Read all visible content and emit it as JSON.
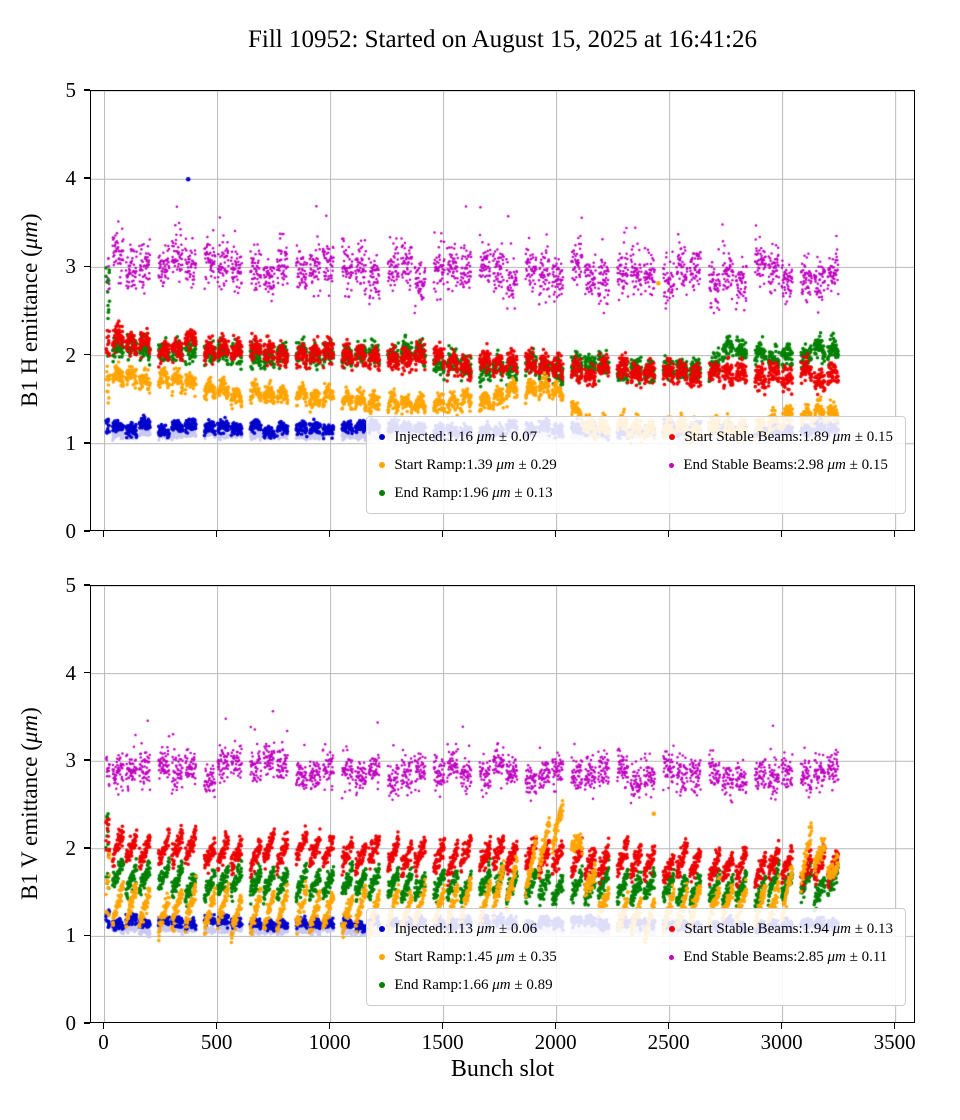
{
  "title": "Fill 10952: Started on August 15, 2025 at 16:41:26",
  "xlabel": "Bunch slot",
  "colors": {
    "axis": "#000000",
    "grid": "#b9b9b9",
    "legend_border": "#cccccc",
    "background": "#ffffff"
  },
  "chart_data": [
    {
      "id": "b1h",
      "type": "scatter",
      "ylabel": "B1 H emittance (μm)",
      "ylabel_parts": [
        "B1 H emittance (",
        "μm",
        ")"
      ],
      "xlim": [
        -60,
        3590
      ],
      "ylim": [
        0,
        5
      ],
      "xticks": [
        0,
        500,
        1000,
        1500,
        2000,
        2500,
        3000,
        3500
      ],
      "yticks": [
        0,
        1,
        2,
        3,
        4,
        5
      ],
      "show_x_labels": false,
      "grid": true,
      "legend": {
        "position": "lower right",
        "columns": [
          [
            0,
            1,
            2
          ],
          [
            3,
            4
          ]
        ]
      },
      "trains": {
        "start": 36,
        "end": 3255,
        "train_len": 48,
        "gap_in": 11,
        "gap_out": 37,
        "group": 3
      },
      "draw_order": [
        5,
        4,
        2,
        3,
        0,
        1
      ],
      "series": [
        {
          "name": "Injected",
          "color": "#0000cd",
          "r": 1.8,
          "mean": 1.16,
          "std": 0.07,
          "legend_parts": [
            "Injected:1.16 ",
            "μm",
            " ± 0.07"
          ],
          "train_mode": "arch",
          "train_amp": 0.03,
          "noise": 0.035,
          "anchors": [
            [
              0,
              1.18
            ],
            [
              800,
              1.16
            ],
            [
              1600,
              1.15
            ],
            [
              2400,
              1.16
            ],
            [
              3250,
              1.17
            ]
          ],
          "pilot": [
            1.12,
            1.3
          ],
          "outliers": [
            [
              370,
              4.0
            ]
          ]
        },
        {
          "name": "Start Ramp",
          "color": "#ffa500",
          "r": 1.8,
          "mean": 1.39,
          "std": 0.29,
          "legend_parts": [
            "Start Ramp:1.39 ",
            "μm",
            " ± 0.29"
          ],
          "train_mode": "arch",
          "train_amp": 0.1,
          "noise": 0.05,
          "anchors": [
            [
              0,
              1.72
            ],
            [
              300,
              1.63
            ],
            [
              600,
              1.52
            ],
            [
              900,
              1.47
            ],
            [
              1200,
              1.44
            ],
            [
              1500,
              1.4
            ],
            [
              1750,
              1.45
            ],
            [
              1950,
              1.62
            ],
            [
              2050,
              1.45
            ],
            [
              2150,
              1.16
            ],
            [
              2400,
              1.12
            ],
            [
              2700,
              1.13
            ],
            [
              2950,
              1.17
            ],
            [
              3080,
              1.27
            ],
            [
              3160,
              1.33
            ],
            [
              3250,
              1.24
            ]
          ],
          "pilot": [
            1.35,
            1.95
          ],
          "outliers": [
            [
              2450,
              2.82
            ]
          ]
        },
        {
          "name": "End Ramp",
          "color": "#008000",
          "r": 1.8,
          "mean": 1.96,
          "std": 0.13,
          "legend_parts": [
            "End Ramp:1.96 ",
            "μm",
            " ± 0.13"
          ],
          "train_mode": "arch",
          "train_amp": 0.05,
          "noise": 0.065,
          "anchors": [
            [
              0,
              2.06
            ],
            [
              600,
              2.0
            ],
            [
              1200,
              1.95
            ],
            [
              1800,
              1.87
            ],
            [
              2300,
              1.8
            ],
            [
              2650,
              1.8
            ],
            [
              2760,
              2.02
            ],
            [
              3000,
              1.97
            ],
            [
              3250,
              2.0
            ]
          ],
          "pilot": [
            1.85,
            3.0
          ]
        },
        {
          "name": "Start Stable Beams",
          "color": "#ee0000",
          "r": 1.8,
          "mean": 1.89,
          "std": 0.15,
          "legend_parts": [
            "Start Stable Beams:1.89 ",
            "μm",
            " ± 0.15"
          ],
          "train_mode": "arch",
          "train_amp": 0.07,
          "noise": 0.065,
          "anchors": [
            [
              0,
              2.1
            ],
            [
              600,
              2.04
            ],
            [
              1200,
              1.97
            ],
            [
              1800,
              1.86
            ],
            [
              2400,
              1.78
            ],
            [
              2800,
              1.76
            ],
            [
              3250,
              1.7
            ]
          ],
          "pilot": [
            2.0,
            2.35
          ]
        },
        {
          "name": "End Stable Beams",
          "color": "#bf00bf",
          "r": 1.25,
          "mean": 2.98,
          "std": 0.15,
          "legend_parts": [
            "End Stable Beams:2.98 ",
            "μm",
            " ± 0.15"
          ],
          "train_mode": "arch",
          "train_amp": 0.0,
          "noise": 0.13,
          "tail": 0.03,
          "anchors": [
            [
              0,
              3.02
            ],
            [
              600,
              3.0
            ],
            [
              1400,
              2.98
            ],
            [
              2000,
              2.95
            ],
            [
              2600,
              2.9
            ],
            [
              3250,
              2.92
            ]
          ],
          "pilot": [
            2.72,
            3.12
          ]
        },
        {
          "name": "shadow-band",
          "color": "#c9c9f0",
          "r": 1.6,
          "train_mode": "arch",
          "train_amp": 0.02,
          "noise": 0.02,
          "anchors": [
            [
              0,
              1.1
            ],
            [
              1600,
              1.08
            ],
            [
              3250,
              1.09
            ]
          ]
        }
      ]
    },
    {
      "id": "b1v",
      "type": "scatter",
      "ylabel": "B1 V emittance (μm)",
      "ylabel_parts": [
        "B1 V emittance (",
        "μm",
        ")"
      ],
      "xlim": [
        -60,
        3590
      ],
      "ylim": [
        0,
        5
      ],
      "xticks": [
        0,
        500,
        1000,
        1500,
        2000,
        2500,
        3000,
        3500
      ],
      "yticks": [
        0,
        1,
        2,
        3,
        4,
        5
      ],
      "show_x_labels": true,
      "grid": true,
      "legend": {
        "position": "lower right",
        "columns": [
          [
            0,
            1,
            2
          ],
          [
            3,
            4
          ]
        ]
      },
      "trains": {
        "start": 36,
        "end": 3255,
        "train_len": 48,
        "gap_in": 11,
        "gap_out": 37,
        "group": 3
      },
      "draw_order": [
        5,
        4,
        2,
        3,
        0,
        1
      ],
      "series": [
        {
          "name": "Injected",
          "color": "#0000cd",
          "r": 1.8,
          "mean": 1.13,
          "std": 0.06,
          "legend_parts": [
            "Injected:1.13 ",
            "μm",
            " ± 0.06"
          ],
          "train_mode": "arch",
          "train_amp": 0.03,
          "noise": 0.03,
          "anchors": [
            [
              0,
              1.16
            ],
            [
              800,
              1.14
            ],
            [
              1600,
              1.13
            ],
            [
              2400,
              1.13
            ],
            [
              3250,
              1.12
            ]
          ],
          "pilot": [
            1.1,
            1.3
          ]
        },
        {
          "name": "Start Ramp",
          "color": "#ffa500",
          "r": 1.8,
          "mean": 1.45,
          "std": 0.35,
          "legend_parts": [
            "Start Ramp:1.45 ",
            "μm",
            " ± 0.35"
          ],
          "train_mode": "saw",
          "train_amp": 0.2,
          "noise": 0.055,
          "anchors": [
            [
              0,
              1.35
            ],
            [
              300,
              1.32
            ],
            [
              700,
              1.3
            ],
            [
              1100,
              1.3
            ],
            [
              1500,
              1.33
            ],
            [
              1700,
              1.42
            ],
            [
              1850,
              1.7
            ],
            [
              1950,
              2.1
            ],
            [
              2010,
              2.33
            ],
            [
              2070,
              2.18
            ],
            [
              2150,
              1.6
            ],
            [
              2250,
              1.28
            ],
            [
              2400,
              1.22
            ],
            [
              2550,
              1.35
            ],
            [
              2700,
              1.42
            ],
            [
              2850,
              1.32
            ],
            [
              3000,
              1.45
            ],
            [
              3080,
              1.75
            ],
            [
              3140,
              2.0
            ],
            [
              3200,
              1.85
            ],
            [
              3250,
              1.55
            ]
          ],
          "pilot": [
            1.2,
            2.05
          ],
          "outliers": [
            [
              2430,
              2.4
            ]
          ]
        },
        {
          "name": "End Ramp",
          "color": "#008000",
          "r": 1.8,
          "mean": 1.66,
          "std": 0.89,
          "legend_parts": [
            "End Ramp:1.66 ",
            "μm",
            " ± 0.89"
          ],
          "train_mode": "saw",
          "train_amp": 0.13,
          "noise": 0.055,
          "anchors": [
            [
              0,
              1.7
            ],
            [
              400,
              1.62
            ],
            [
              900,
              1.58
            ],
            [
              1400,
              1.6
            ],
            [
              1900,
              1.55
            ],
            [
              2400,
              1.58
            ],
            [
              2700,
              1.52
            ],
            [
              3000,
              1.58
            ],
            [
              3250,
              1.6
            ]
          ],
          "pilot": [
            1.55,
            2.4
          ]
        },
        {
          "name": "Start Stable Beams",
          "color": "#ee0000",
          "r": 1.8,
          "mean": 1.94,
          "std": 0.13,
          "legend_parts": [
            "Start Stable Beams:1.94 ",
            "μm",
            " ± 0.13"
          ],
          "train_mode": "saw",
          "train_amp": 0.14,
          "noise": 0.06,
          "anchors": [
            [
              0,
              2.05
            ],
            [
              400,
              2.0
            ],
            [
              900,
              1.97
            ],
            [
              1400,
              1.93
            ],
            [
              1900,
              1.9
            ],
            [
              2400,
              1.85
            ],
            [
              2800,
              1.82
            ],
            [
              3250,
              1.78
            ]
          ],
          "pilot": [
            1.9,
            2.4
          ]
        },
        {
          "name": "End Stable Beams",
          "color": "#bf00bf",
          "r": 1.25,
          "mean": 2.85,
          "std": 0.11,
          "legend_parts": [
            "End Stable Beams:2.85 ",
            "μm",
            " ± 0.11"
          ],
          "train_mode": "arch",
          "train_amp": 0.0,
          "noise": 0.1,
          "tail": 0.025,
          "anchors": [
            [
              0,
              2.95
            ],
            [
              600,
              2.9
            ],
            [
              1200,
              2.87
            ],
            [
              1800,
              2.85
            ],
            [
              2400,
              2.8
            ],
            [
              2900,
              2.82
            ],
            [
              3250,
              2.86
            ]
          ],
          "pilot": [
            2.7,
            3.05
          ]
        },
        {
          "name": "shadow-band",
          "color": "#c9c9f0",
          "r": 1.6,
          "train_mode": "arch",
          "train_amp": 0.02,
          "noise": 0.02,
          "anchors": [
            [
              0,
              1.07
            ],
            [
              1600,
              1.05
            ],
            [
              3250,
              1.06
            ]
          ]
        }
      ]
    }
  ]
}
